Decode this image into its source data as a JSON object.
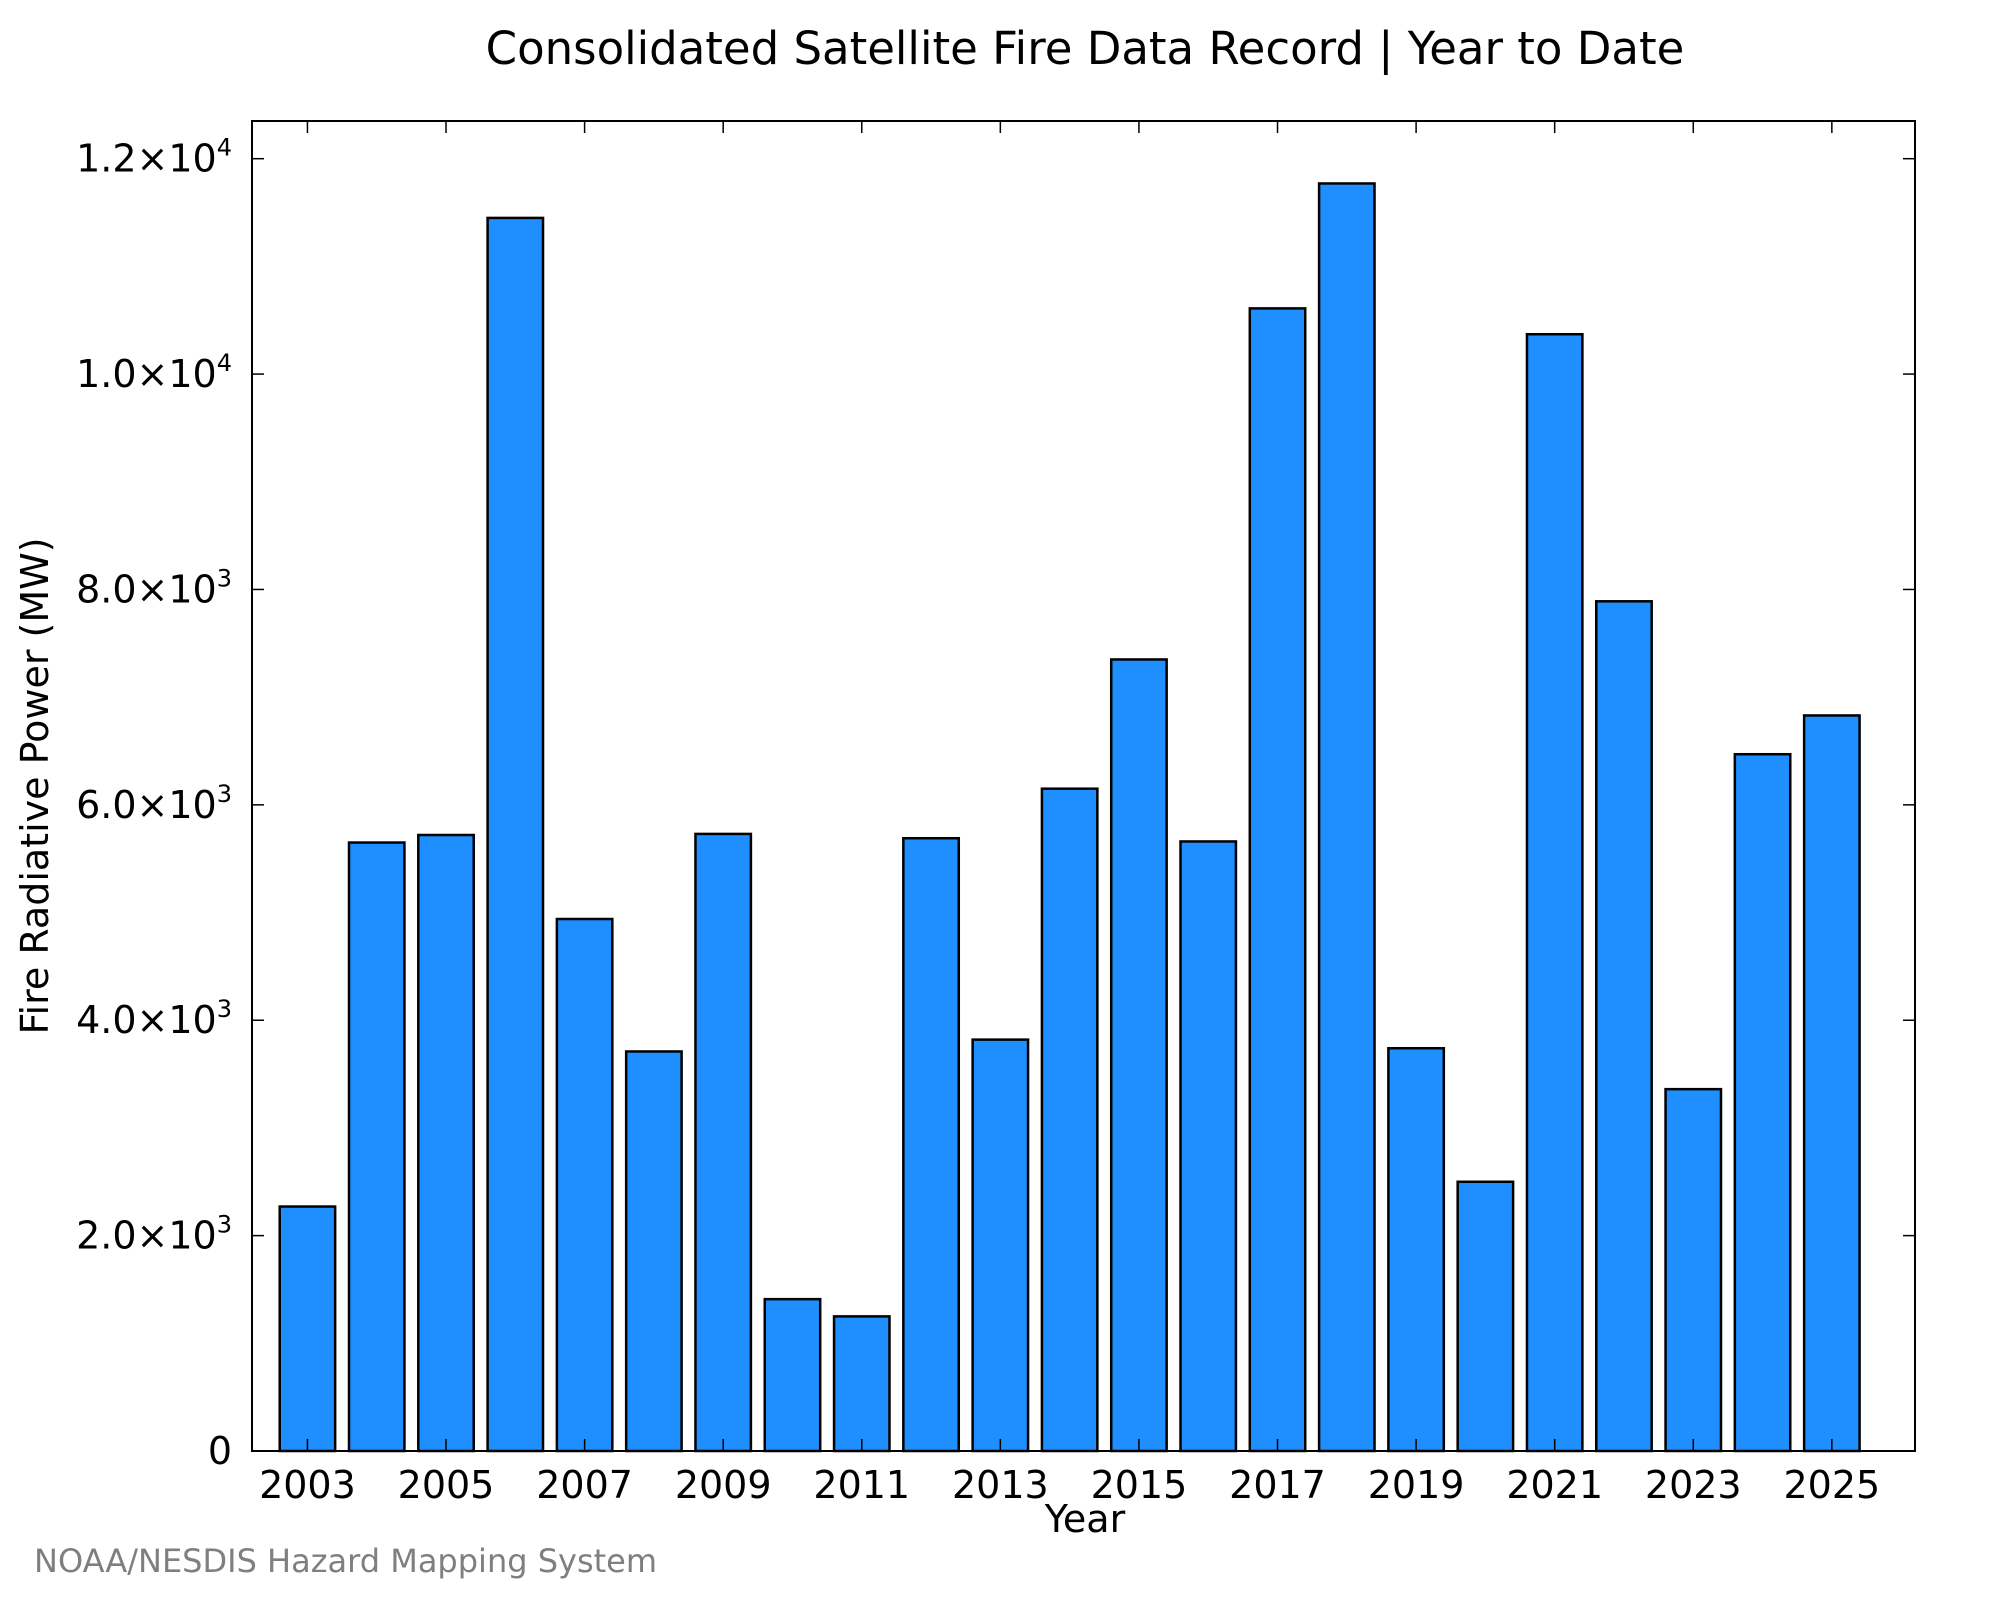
{
  "chart_data": {
    "type": "bar",
    "title": "Consolidated Satellite Fire Data Record | Year to Date",
    "xlabel": "Year",
    "ylabel": "Fire Radiative Power (MW)",
    "credit": "NOAA/NESDIS Hazard Mapping System",
    "bar_color": "#1f8fff",
    "bar_edge_color": "#000000",
    "grid": false,
    "ylim": [
      0,
      12350
    ],
    "xlim": [
      2002.2,
      2026.2
    ],
    "categories": [
      2003,
      2004,
      2005,
      2006,
      2007,
      2008,
      2009,
      2010,
      2011,
      2012,
      2013,
      2014,
      2015,
      2016,
      2017,
      2018,
      2019,
      2020,
      2021,
      2022,
      2023,
      2024,
      2025
    ],
    "values": [
      2270,
      5650,
      5720,
      11450,
      4940,
      3710,
      5730,
      1410,
      1250,
      5690,
      3820,
      6150,
      7350,
      5660,
      10610,
      11770,
      3740,
      2500,
      10370,
      7890,
      3360,
      6470,
      6830
    ],
    "x_ticks": [
      {
        "value": 2003,
        "label": "2003"
      },
      {
        "value": 2005,
        "label": "2005"
      },
      {
        "value": 2007,
        "label": "2007"
      },
      {
        "value": 2009,
        "label": "2009"
      },
      {
        "value": 2011,
        "label": "2011"
      },
      {
        "value": 2013,
        "label": "2013"
      },
      {
        "value": 2015,
        "label": "2015"
      },
      {
        "value": 2017,
        "label": "2017"
      },
      {
        "value": 2019,
        "label": "2019"
      },
      {
        "value": 2021,
        "label": "2021"
      },
      {
        "value": 2023,
        "label": "2023"
      },
      {
        "value": 2025,
        "label": "2025"
      }
    ],
    "y_ticks": [
      {
        "value": 0,
        "mantissa": "0",
        "exponent": ""
      },
      {
        "value": 2000,
        "mantissa": "2.0×10",
        "exponent": "3"
      },
      {
        "value": 4000,
        "mantissa": "4.0×10",
        "exponent": "3"
      },
      {
        "value": 6000,
        "mantissa": "6.0×10",
        "exponent": "3"
      },
      {
        "value": 8000,
        "mantissa": "8.0×10",
        "exponent": "3"
      },
      {
        "value": 10000,
        "mantissa": "1.0×10",
        "exponent": "4"
      },
      {
        "value": 12000,
        "mantissa": "1.2×10",
        "exponent": "4"
      }
    ]
  }
}
